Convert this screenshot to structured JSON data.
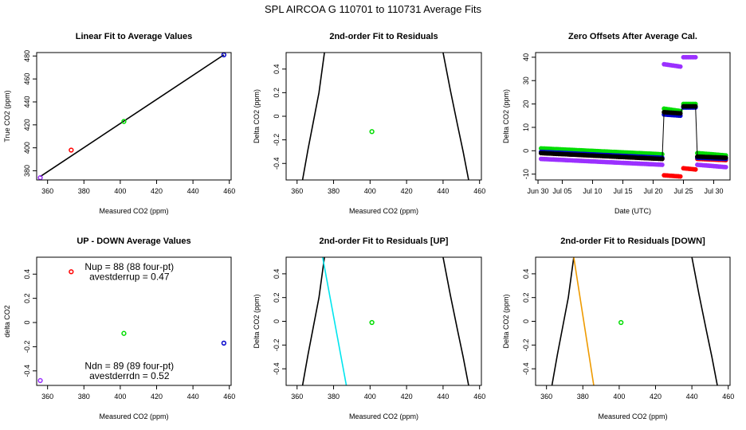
{
  "figure": {
    "title": "SPL   AIRCOA G   110701 to 110731   Average Fits"
  },
  "chart_data": [
    {
      "id": "p1",
      "type": "scatter",
      "title": "Linear Fit to Average Values",
      "xlabel": "Measured CO2 (ppm)",
      "ylabel": "True CO2 (ppm)",
      "xlim": [
        354,
        461
      ],
      "ylim": [
        372,
        483
      ],
      "xticks": [
        360,
        380,
        400,
        420,
        440,
        460
      ],
      "yticks": [
        380,
        400,
        420,
        440,
        460,
        480
      ],
      "points": [
        {
          "x": 356,
          "y": 374,
          "color": "#9b30ff"
        },
        {
          "x": 373,
          "y": 398,
          "color": "#ff0000"
        },
        {
          "x": 402,
          "y": 423,
          "color": "#00dd00"
        },
        {
          "x": 457,
          "y": 481,
          "color": "#0000cc"
        }
      ],
      "lines": [
        {
          "name": "linear fit",
          "color": "#000000",
          "x": [
            356,
            457
          ],
          "y": [
            375,
            481
          ]
        }
      ]
    },
    {
      "id": "p2",
      "type": "scatter",
      "title": "2nd-order Fit to Residuals",
      "xlabel": "Measured CO2 (ppm)",
      "ylabel": "Delta CO2 (ppm)",
      "xlim": [
        354,
        461
      ],
      "ylim": [
        -0.54,
        0.54
      ],
      "xticks": [
        360,
        380,
        400,
        420,
        440,
        460
      ],
      "yticks": [
        -0.4,
        -0.2,
        0.0,
        0.2,
        0.4
      ],
      "points": [
        {
          "x": 401,
          "y": -0.13,
          "color": "#00dd00"
        }
      ],
      "lines": [
        {
          "name": "fit",
          "color": "#000000",
          "x": [
            363,
            366,
            369,
            372,
            375
          ],
          "y": [
            -0.54,
            -0.28,
            -0.04,
            0.2,
            0.54
          ]
        },
        {
          "name": "fit",
          "color": "#000000",
          "x": [
            440,
            444,
            448,
            451,
            454
          ],
          "y": [
            0.54,
            0.22,
            -0.08,
            -0.3,
            -0.54
          ]
        }
      ]
    },
    {
      "id": "p3",
      "type": "scatter",
      "title": "Zero Offsets After Average Cal.",
      "xlabel": "Date (UTC)",
      "ylabel": "Delta CO2 (ppm)",
      "xlim": [
        0.6,
        32.7
      ],
      "ylim": [
        -12.5,
        42
      ],
      "xticks": [
        1,
        5,
        10,
        15,
        20,
        25,
        30
      ],
      "xticklabels": [
        "Jun 30",
        "Jul 05",
        "Jul 10",
        "Jul 15",
        "Jul 20",
        "Jul 25",
        "Jul 30"
      ],
      "yticks": [
        -10,
        0,
        10,
        20,
        30,
        40
      ],
      "series": [
        {
          "name": "purple",
          "color": "#9b30ff",
          "segments": [
            {
              "x": [
                1.5,
                21.5
              ],
              "y": [
                -3.5,
                -6
              ]
            },
            {
              "x": [
                21.8,
                24.5
              ],
              "y": [
                37,
                36
              ]
            },
            {
              "x": [
                25,
                27
              ],
              "y": [
                40,
                40
              ]
            },
            {
              "x": [
                27.3,
                32
              ],
              "y": [
                -6,
                -7
              ]
            }
          ]
        },
        {
          "name": "red",
          "color": "#ff0000",
          "segments": [
            {
              "x": [
                1.5,
                21.5
              ],
              "y": [
                -1,
                -3.5
              ]
            },
            {
              "x": [
                21.8,
                24.5
              ],
              "y": [
                -10.5,
                -11
              ]
            },
            {
              "x": [
                25,
                27
              ],
              "y": [
                -7.5,
                -8
              ]
            },
            {
              "x": [
                27.3,
                32
              ],
              "y": [
                -3.5,
                -4
              ]
            }
          ]
        },
        {
          "name": "green",
          "color": "#00dd00",
          "segments": [
            {
              "x": [
                1.5,
                21.5
              ],
              "y": [
                1,
                -1.5
              ]
            },
            {
              "x": [
                21.8,
                24.5
              ],
              "y": [
                18,
                17
              ]
            },
            {
              "x": [
                25,
                27
              ],
              "y": [
                20,
                20
              ]
            },
            {
              "x": [
                27.3,
                32
              ],
              "y": [
                -1,
                -2
              ]
            }
          ]
        },
        {
          "name": "blue",
          "color": "#0000cc",
          "segments": [
            {
              "x": [
                1.5,
                21.5
              ],
              "y": [
                -0.5,
                -3
              ]
            },
            {
              "x": [
                21.8,
                24.5
              ],
              "y": [
                15.5,
                15
              ]
            },
            {
              "x": [
                25,
                27
              ],
              "y": [
                18.5,
                18.5
              ]
            },
            {
              "x": [
                27.3,
                32
              ],
              "y": [
                -3,
                -3.5
              ]
            }
          ]
        },
        {
          "name": "black",
          "color": "#000000",
          "segments": [
            {
              "x": [
                1.5,
                21.5
              ],
              "y": [
                -1,
                -3.5
              ]
            },
            {
              "x": [
                21.8,
                24.5
              ],
              "y": [
                16.5,
                16
              ]
            },
            {
              "x": [
                25,
                27
              ],
              "y": [
                19,
                19
              ]
            },
            {
              "x": [
                27.3,
                32
              ],
              "y": [
                -2.5,
                -3
              ]
            }
          ]
        }
      ]
    },
    {
      "id": "p4",
      "type": "scatter",
      "title": "UP - DOWN Average Values",
      "xlabel": "Measured CO2 (ppm)",
      "ylabel": "delta CO2",
      "xlim": [
        354,
        461
      ],
      "ylim": [
        -0.52,
        0.54
      ],
      "xticks": [
        360,
        380,
        400,
        420,
        440,
        460
      ],
      "yticks": [
        -0.4,
        -0.2,
        0.0,
        0.2,
        0.4
      ],
      "points": [
        {
          "x": 356,
          "y": -0.48,
          "color": "#9b30ff"
        },
        {
          "x": 373,
          "y": 0.42,
          "color": "#ff0000"
        },
        {
          "x": 402,
          "y": -0.09,
          "color": "#00dd00"
        },
        {
          "x": 457,
          "y": -0.17,
          "color": "#0000cc"
        }
      ],
      "annotations": [
        {
          "text": "Nup = 88 (88 four-pt)",
          "x": 405,
          "y": 0.46
        },
        {
          "text": "avestderrup =  0.47",
          "x": 405,
          "y": 0.38
        },
        {
          "text": "Ndn = 89 (89 four-pt)",
          "x": 405,
          "y": -0.36
        },
        {
          "text": "avestderrdn =  0.52",
          "x": 405,
          "y": -0.44
        }
      ]
    },
    {
      "id": "p5",
      "type": "scatter",
      "title": "2nd-order Fit to Residuals [UP]",
      "xlabel": "Measured CO2 (ppm)",
      "ylabel": "Delta CO2 (ppm)",
      "xlim": [
        354,
        461
      ],
      "ylim": [
        -0.54,
        0.54
      ],
      "xticks": [
        360,
        380,
        400,
        420,
        440,
        460
      ],
      "yticks": [
        -0.4,
        -0.2,
        0.0,
        0.2,
        0.4
      ],
      "points": [
        {
          "x": 401,
          "y": -0.01,
          "color": "#00dd00"
        }
      ],
      "lines": [
        {
          "name": "fit",
          "color": "#000000",
          "x": [
            363,
            366,
            369,
            372,
            375
          ],
          "y": [
            -0.54,
            -0.28,
            -0.04,
            0.2,
            0.54
          ]
        },
        {
          "name": "fit",
          "color": "#000000",
          "x": [
            440,
            444,
            448,
            451,
            454
          ],
          "y": [
            0.54,
            0.22,
            -0.08,
            -0.3,
            -0.54
          ]
        },
        {
          "name": "up fit",
          "color": "#00e5ee",
          "x": [
            374,
            387
          ],
          "y": [
            0.54,
            -0.54
          ]
        }
      ]
    },
    {
      "id": "p6",
      "type": "scatter",
      "title": "2nd-order Fit to Residuals [DOWN]",
      "xlabel": "Measured CO2 (ppm)",
      "ylabel": "Delta CO2 (ppm)",
      "xlim": [
        354,
        461
      ],
      "ylim": [
        -0.54,
        0.54
      ],
      "xticks": [
        360,
        380,
        400,
        420,
        440,
        460
      ],
      "yticks": [
        -0.4,
        -0.2,
        0.0,
        0.2,
        0.4
      ],
      "points": [
        {
          "x": 401,
          "y": -0.01,
          "color": "#00dd00"
        }
      ],
      "lines": [
        {
          "name": "fit",
          "color": "#000000",
          "x": [
            363,
            366,
            369,
            372,
            375
          ],
          "y": [
            -0.54,
            -0.28,
            -0.04,
            0.2,
            0.54
          ]
        },
        {
          "name": "fit",
          "color": "#000000",
          "x": [
            440,
            444,
            448,
            451,
            454
          ],
          "y": [
            0.54,
            0.22,
            -0.08,
            -0.3,
            -0.54
          ]
        },
        {
          "name": "down fit",
          "color": "#ee9a00",
          "x": [
            375,
            386
          ],
          "y": [
            0.54,
            -0.54
          ]
        }
      ]
    }
  ]
}
